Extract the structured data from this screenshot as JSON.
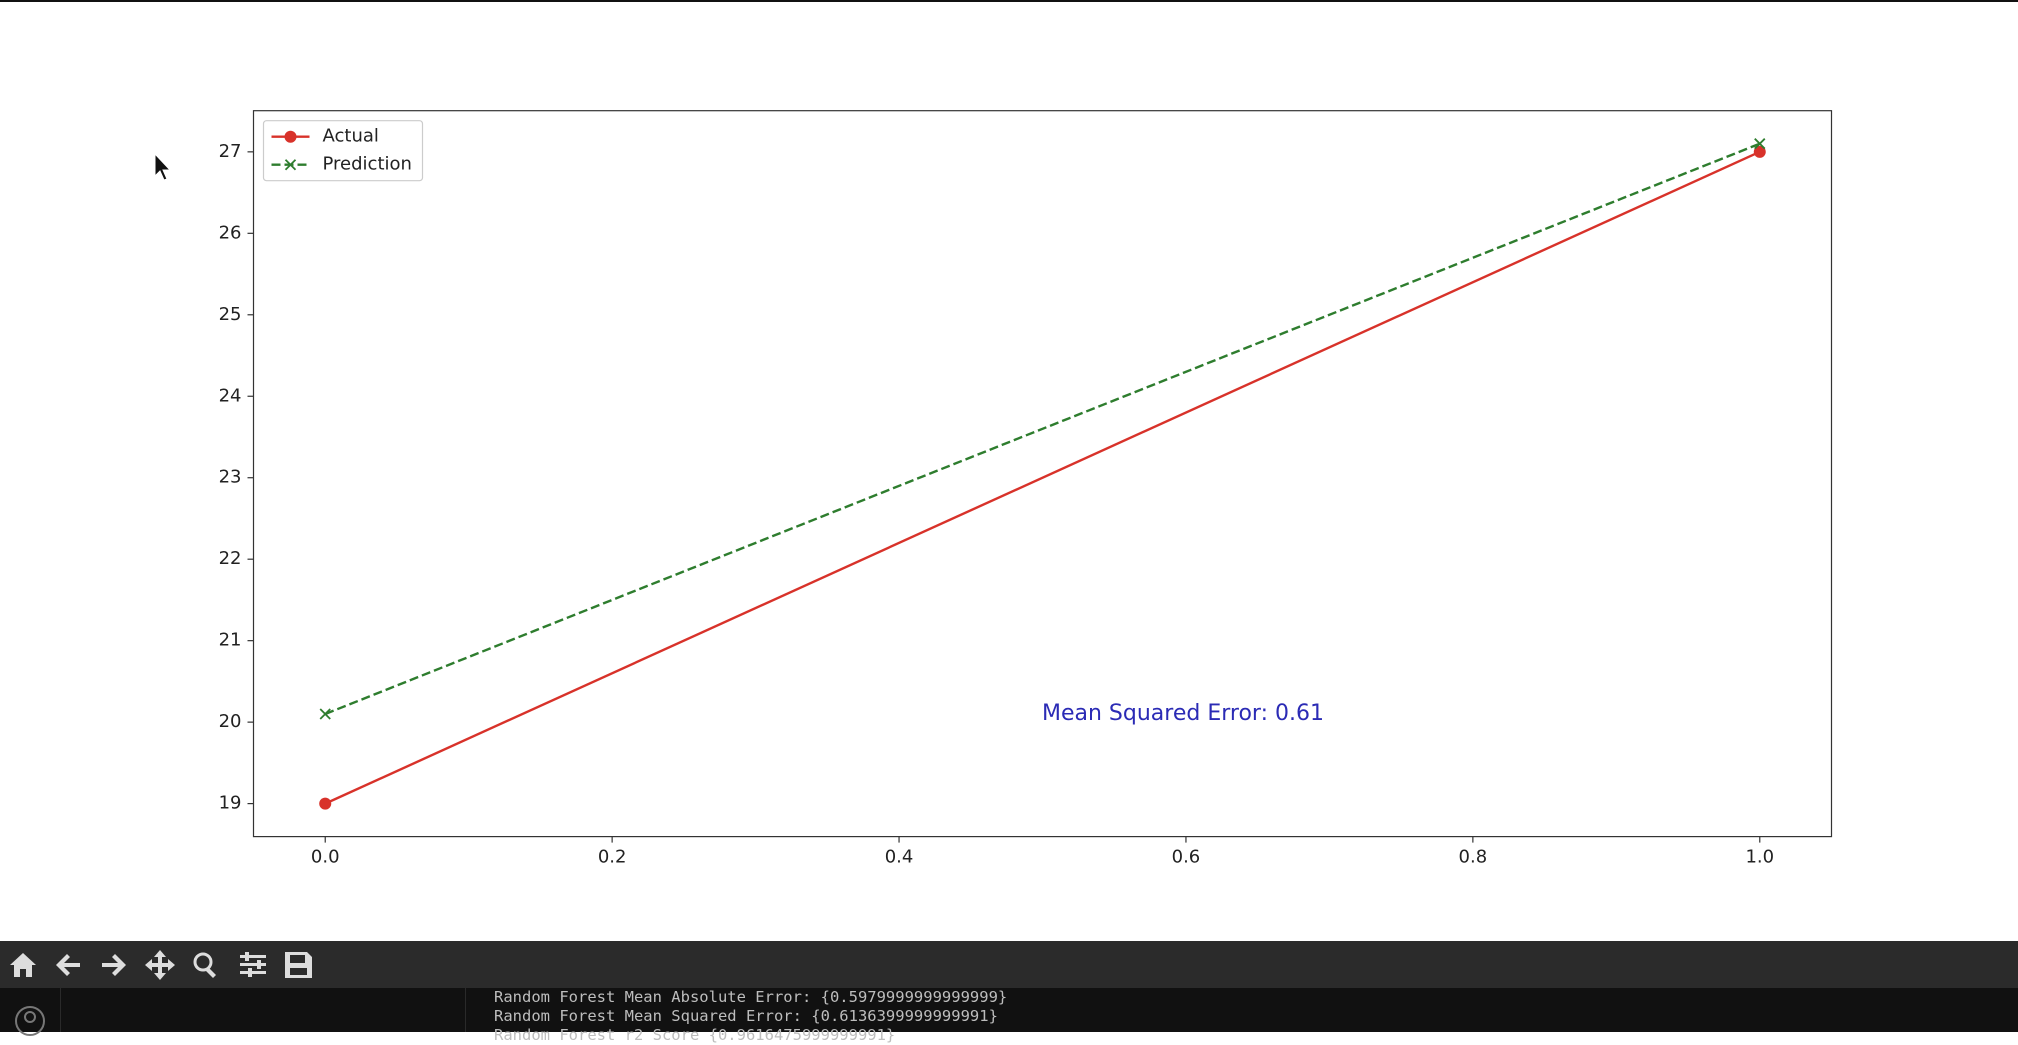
{
  "chart_data": {
    "type": "line",
    "x": [
      0,
      1
    ],
    "series": [
      {
        "name": "Actual",
        "color": "#d8322a",
        "values": [
          19,
          27
        ],
        "marker": "o",
        "linestyle": "solid"
      },
      {
        "name": "Prediction",
        "color": "#2e7d2e",
        "values": [
          20.1,
          27.1
        ],
        "marker": "x",
        "linestyle": "dashed"
      }
    ],
    "annotation": "Mean Squared Error: 0.61",
    "xlim": [
      -0.05,
      1.05
    ],
    "xticks": [
      {
        "value": 0,
        "label": "0.0"
      },
      0.2,
      0.4,
      0.6,
      0.8,
      {
        "value": 1,
        "label": "1.0"
      }
    ],
    "ylim": [
      18.595,
      27.505
    ],
    "yticks": [
      19,
      20,
      21,
      22,
      23,
      24,
      25,
      26,
      27
    ],
    "legend": "upper left"
  },
  "console": {
    "lines": [
      "Random Forest Mean Absolute Error: {0.5979999999999999}",
      "Random Forest Mean Squared Error: {0.6136399999999991}",
      "Random Forest r2 Score {0.9616475999999991}"
    ]
  }
}
